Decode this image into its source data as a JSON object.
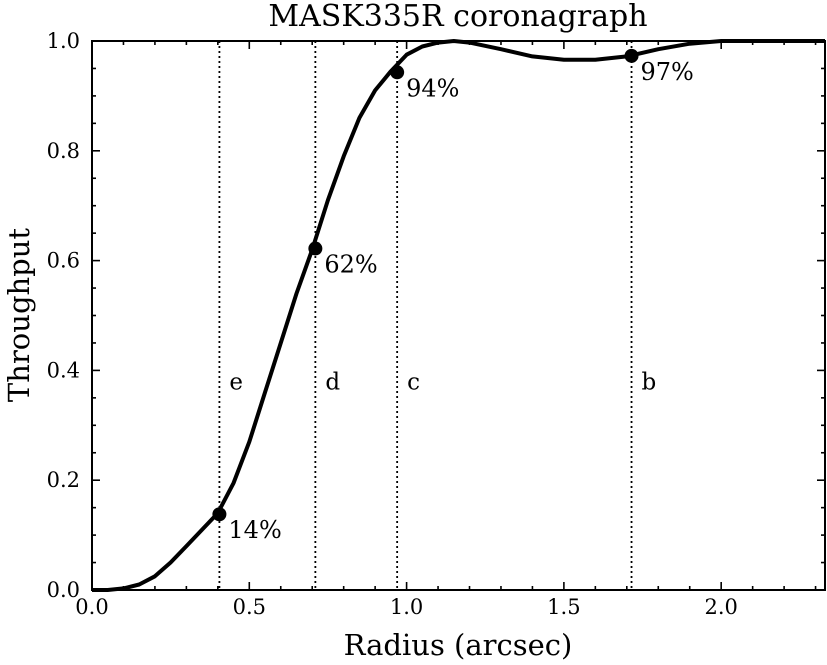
{
  "chart_data": {
    "type": "line",
    "title": "MASK335R coronagraph",
    "xlabel": "Radius (arcsec)",
    "ylabel": "Throughput",
    "xlim": [
      0.0,
      2.33
    ],
    "ylim": [
      0.0,
      1.0
    ],
    "grid": false,
    "x_ticks": [
      0.0,
      0.5,
      1.0,
      1.5,
      2.0
    ],
    "x_tick_labels": [
      "0.0",
      "0.5",
      "1.0",
      "1.5",
      "2.0"
    ],
    "y_ticks": [
      0.0,
      0.2,
      0.4,
      0.6,
      0.8,
      1.0
    ],
    "y_tick_labels": [
      "0.0",
      "0.2",
      "0.4",
      "0.6",
      "0.8",
      "1.0"
    ],
    "series": [
      {
        "x": [
          0.0,
          0.05,
          0.1,
          0.15,
          0.2,
          0.25,
          0.3,
          0.35,
          0.4,
          0.45,
          0.5,
          0.55,
          0.6,
          0.65,
          0.7,
          0.75,
          0.8,
          0.85,
          0.9,
          0.95,
          1.0,
          1.05,
          1.1,
          1.15,
          1.2,
          1.3,
          1.4,
          1.5,
          1.6,
          1.7,
          1.8,
          1.9,
          2.0,
          2.1,
          2.2,
          2.33
        ],
        "y": [
          0.0,
          0.0,
          0.003,
          0.01,
          0.025,
          0.05,
          0.08,
          0.11,
          0.14,
          0.195,
          0.27,
          0.36,
          0.45,
          0.54,
          0.62,
          0.71,
          0.79,
          0.86,
          0.91,
          0.945,
          0.975,
          0.99,
          0.997,
          1.0,
          0.997,
          0.985,
          0.972,
          0.966,
          0.966,
          0.972,
          0.985,
          0.995,
          1.0,
          1.0,
          1.0,
          1.0
        ]
      }
    ],
    "points": [
      {
        "x": 0.405,
        "y": 0.138,
        "label": "14%"
      },
      {
        "x": 0.71,
        "y": 0.622,
        "label": "62%"
      },
      {
        "x": 0.97,
        "y": 0.943,
        "label": "94%"
      },
      {
        "x": 1.715,
        "y": 0.973,
        "label": "97%"
      }
    ],
    "vertical_lines": [
      {
        "x": 0.405,
        "label": "e"
      },
      {
        "x": 0.71,
        "label": "d"
      },
      {
        "x": 0.97,
        "label": "c"
      },
      {
        "x": 1.715,
        "label": "b"
      }
    ],
    "vertical_label_y": 0.38
  }
}
